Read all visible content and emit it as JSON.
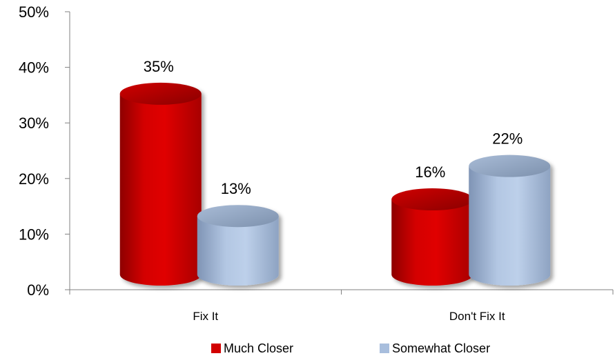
{
  "chart_data": {
    "type": "bar",
    "style": "3d-cylinder",
    "categories": [
      "Fix It",
      "Don't Fix It"
    ],
    "series": [
      {
        "name": "Much Closer",
        "values": [
          35,
          16
        ],
        "labels": [
          "35%",
          "16%"
        ],
        "color": "#d20000"
      },
      {
        "name": "Somewhat Closer",
        "values": [
          13,
          22
        ],
        "labels": [
          "13%",
          "22%"
        ],
        "color": "#a8bedd"
      }
    ],
    "ylim": [
      0,
      50
    ],
    "yticks": [
      "0%",
      "10%",
      "20%",
      "30%",
      "40%",
      "50%"
    ],
    "ytick_values": [
      0,
      10,
      20,
      30,
      40,
      50
    ],
    "grid": false,
    "legend": "bottom"
  }
}
